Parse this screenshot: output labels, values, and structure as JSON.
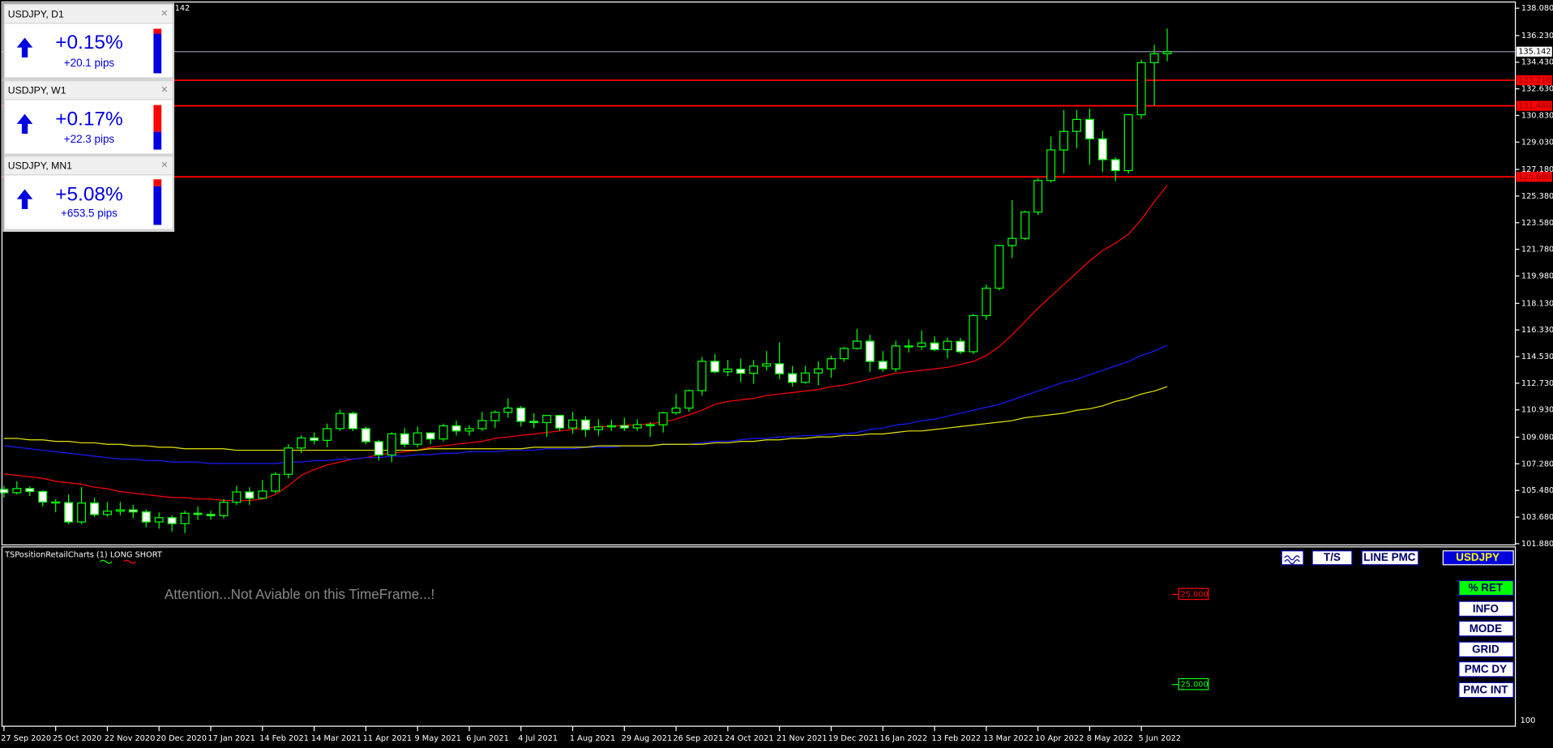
{
  "chart_data": {
    "type": "candlestick",
    "corner_text": ".142",
    "categories": [
      "27 Sep 2020",
      null,
      null,
      null,
      "25 Oct 2020",
      null,
      null,
      null,
      "22 Nov 2020",
      null,
      null,
      null,
      "20 Dec 2020",
      null,
      null,
      null,
      "17 Jan 2021",
      null,
      null,
      null,
      "14 Feb 2021",
      null,
      null,
      null,
      "14 Mar 2021",
      null,
      null,
      null,
      "11 Apr 2021",
      null,
      null,
      null,
      "9 May 2021",
      null,
      null,
      null,
      "6 Jun 2021",
      null,
      null,
      null,
      "4 Jul 2021",
      null,
      null,
      null,
      "1 Aug 2021",
      null,
      null,
      null,
      "29 Aug 2021",
      null,
      null,
      null,
      "26 Sep 2021",
      null,
      null,
      null,
      "24 Oct 2021",
      null,
      null,
      null,
      "21 Nov 2021",
      null,
      null,
      null,
      "19 Dec 2021",
      null,
      null,
      null,
      "16 Jan 2022",
      null,
      null,
      null,
      "13 Feb 2022",
      null,
      null,
      null,
      "13 Mar 2022",
      null,
      null,
      null,
      "10 Apr 2022",
      null,
      null,
      null,
      "8 May 2022",
      null,
      null,
      null,
      "5 Jun 2022",
      null,
      null
    ],
    "open": [
      105.55,
      105.33,
      105.61,
      105.41,
      104.7,
      104.66,
      103.35,
      104.63,
      103.85,
      104.08,
      104.17,
      104.03,
      103.35,
      103.64,
      103.24,
      103.94,
      103.86,
      103.77,
      104.68,
      105.38,
      104.95,
      105.44,
      106.57,
      108.35,
      109.03,
      108.87,
      109.66,
      110.69,
      109.66,
      108.78,
      107.88,
      109.31,
      108.6,
      109.37,
      108.96,
      109.85,
      109.5,
      109.66,
      110.2,
      110.76,
      111.05,
      110.15,
      110.07,
      110.55,
      109.7,
      110.24,
      109.59,
      109.78,
      109.86,
      109.71,
      109.93,
      109.92,
      110.73,
      111.05,
      112.23,
      114.21,
      113.5,
      113.68,
      113.4,
      113.89,
      114.04,
      113.37,
      112.79,
      113.42,
      113.7,
      114.39,
      115.08,
      115.57,
      114.2,
      113.7,
      115.25,
      115.2,
      115.45,
      115.0,
      115.56,
      114.86,
      117.3,
      119.15,
      122.04,
      122.52,
      124.3,
      126.43,
      128.5,
      129.75,
      130.56,
      129.25,
      127.84,
      127.1,
      130.88,
      134.4,
      135.0
    ],
    "high": [
      105.8,
      106.1,
      105.75,
      105.5,
      104.9,
      105.2,
      105.7,
      105.0,
      104.7,
      104.7,
      104.5,
      104.2,
      104.0,
      103.8,
      104.1,
      104.4,
      104.1,
      104.9,
      105.8,
      105.7,
      106.2,
      106.7,
      108.6,
      109.2,
      109.4,
      110.0,
      110.95,
      110.8,
      109.8,
      108.9,
      109.4,
      109.7,
      109.8,
      109.4,
      110.0,
      110.2,
      109.9,
      110.8,
      110.9,
      111.7,
      111.2,
      110.7,
      110.6,
      110.6,
      110.8,
      110.5,
      110.3,
      110.25,
      110.4,
      110.3,
      110.1,
      110.8,
      112.0,
      112.3,
      114.5,
      114.7,
      114.3,
      114.4,
      114.3,
      114.9,
      115.5,
      113.9,
      113.9,
      114.2,
      114.6,
      115.2,
      116.4,
      116.0,
      114.9,
      115.6,
      115.7,
      116.3,
      115.9,
      115.8,
      115.8,
      117.4,
      119.4,
      122.1,
      125.1,
      124.4,
      126.6,
      129.4,
      131.2,
      131.2,
      131.3,
      129.8,
      128.0,
      130.9,
      134.6,
      135.6,
      136.7
    ],
    "low": [
      105.0,
      105.2,
      105.1,
      104.4,
      104.0,
      103.2,
      103.2,
      103.7,
      103.7,
      103.8,
      103.6,
      103.0,
      102.9,
      102.7,
      102.6,
      103.5,
      103.5,
      103.6,
      104.5,
      104.5,
      104.9,
      105.3,
      106.3,
      108.0,
      108.6,
      108.4,
      109.5,
      109.5,
      108.6,
      107.5,
      107.4,
      108.4,
      108.4,
      108.6,
      108.8,
      109.2,
      109.2,
      109.5,
      109.7,
      110.4,
      109.8,
      109.7,
      109.1,
      109.5,
      109.3,
      109.1,
      109.2,
      109.5,
      109.5,
      109.5,
      109.1,
      109.4,
      110.6,
      110.8,
      111.9,
      113.4,
      113.2,
      112.8,
      112.7,
      113.6,
      113.0,
      112.5,
      112.7,
      112.6,
      113.1,
      114.2,
      115.0,
      113.5,
      113.5,
      113.5,
      114.8,
      115.0,
      114.9,
      114.4,
      114.7,
      114.7,
      117.0,
      119.0,
      121.2,
      122.4,
      124.1,
      126.3,
      126.9,
      128.6,
      127.5,
      127.0,
      126.4,
      126.9,
      130.6,
      131.5,
      134.5
    ],
    "close": [
      105.33,
      105.61,
      105.41,
      104.7,
      104.66,
      103.35,
      104.63,
      103.85,
      104.08,
      104.17,
      104.03,
      103.35,
      103.64,
      103.24,
      103.94,
      103.86,
      103.77,
      104.68,
      105.38,
      104.95,
      105.44,
      106.57,
      108.35,
      109.03,
      108.87,
      109.66,
      110.69,
      109.66,
      108.78,
      107.88,
      109.31,
      108.6,
      109.37,
      108.96,
      109.85,
      109.5,
      109.66,
      110.2,
      110.76,
      111.05,
      110.15,
      110.07,
      110.55,
      109.7,
      110.24,
      109.59,
      109.78,
      109.86,
      109.71,
      109.93,
      109.92,
      110.73,
      111.05,
      112.23,
      114.21,
      113.5,
      113.68,
      113.4,
      113.89,
      114.04,
      113.37,
      112.79,
      113.42,
      113.7,
      114.39,
      115.08,
      115.57,
      114.2,
      113.7,
      115.25,
      115.2,
      115.45,
      115.0,
      115.56,
      114.86,
      117.3,
      119.15,
      122.04,
      122.52,
      124.3,
      126.43,
      128.5,
      129.75,
      130.56,
      129.25,
      127.84,
      127.1,
      130.88,
      134.4,
      135.0,
      135.142
    ],
    "up_color": "#000000",
    "down_color": "#ffffff",
    "wick_color": "#00ff00",
    "lines": [
      {
        "color": "#ff0000",
        "values": [
          106.6,
          106.5,
          106.4,
          106.3,
          106.1,
          106.0,
          105.9,
          105.7,
          105.6,
          105.4,
          105.3,
          105.2,
          105.1,
          105.0,
          105.0,
          104.9,
          104.9,
          104.8,
          104.8,
          104.8,
          104.9,
          105.2,
          105.8,
          106.5,
          106.9,
          107.2,
          107.4,
          107.6,
          107.7,
          107.9,
          108.0,
          108.1,
          108.2,
          108.4,
          108.5,
          108.6,
          108.7,
          108.8,
          109.0,
          109.1,
          109.2,
          109.3,
          109.4,
          109.5,
          109.6,
          109.7,
          109.8,
          109.8,
          109.9,
          109.9,
          110.0,
          110.1,
          110.3,
          110.6,
          110.9,
          111.3,
          111.5,
          111.6,
          111.7,
          111.9,
          112.0,
          112.1,
          112.2,
          112.3,
          112.5,
          112.6,
          112.8,
          113.0,
          113.2,
          113.4,
          113.5,
          113.6,
          113.7,
          113.8,
          114.0,
          114.2,
          114.6,
          115.2,
          116.0,
          116.9,
          117.8,
          118.6,
          119.4,
          120.2,
          121.0,
          121.7,
          122.2,
          122.8,
          123.8,
          125.0,
          126.1
        ]
      },
      {
        "color": "#1a1aff",
        "values": [
          108.5,
          108.4,
          108.3,
          108.2,
          108.1,
          108.0,
          107.9,
          107.8,
          107.7,
          107.6,
          107.6,
          107.5,
          107.5,
          107.4,
          107.4,
          107.4,
          107.3,
          107.3,
          107.3,
          107.3,
          107.3,
          107.3,
          107.4,
          107.4,
          107.5,
          107.5,
          107.6,
          107.6,
          107.7,
          107.7,
          107.8,
          107.8,
          107.9,
          107.9,
          108.0,
          108.0,
          108.1,
          108.1,
          108.1,
          108.2,
          108.2,
          108.2,
          108.3,
          108.3,
          108.3,
          108.4,
          108.4,
          108.4,
          108.5,
          108.5,
          108.5,
          108.6,
          108.6,
          108.6,
          108.7,
          108.8,
          108.8,
          108.9,
          109.0,
          109.0,
          109.1,
          109.1,
          109.2,
          109.2,
          109.3,
          109.3,
          109.4,
          109.6,
          109.7,
          109.9,
          110.0,
          110.2,
          110.3,
          110.5,
          110.7,
          110.9,
          111.1,
          111.3,
          111.6,
          111.9,
          112.2,
          112.5,
          112.8,
          113.0,
          113.3,
          113.6,
          113.9,
          114.2,
          114.6,
          114.9,
          115.3
        ]
      },
      {
        "color": "#e6e600",
        "values": [
          109.0,
          109.0,
          108.9,
          108.9,
          108.8,
          108.8,
          108.7,
          108.7,
          108.6,
          108.6,
          108.5,
          108.5,
          108.4,
          108.4,
          108.3,
          108.3,
          108.3,
          108.3,
          108.2,
          108.2,
          108.2,
          108.2,
          108.2,
          108.2,
          108.2,
          108.2,
          108.2,
          108.2,
          108.2,
          108.2,
          108.2,
          108.2,
          108.2,
          108.3,
          108.3,
          108.3,
          108.3,
          108.3,
          108.3,
          108.3,
          108.3,
          108.4,
          108.4,
          108.4,
          108.4,
          108.4,
          108.5,
          108.5,
          108.5,
          108.5,
          108.5,
          108.6,
          108.6,
          108.6,
          108.6,
          108.7,
          108.7,
          108.8,
          108.8,
          108.9,
          108.9,
          109.0,
          109.0,
          109.1,
          109.1,
          109.2,
          109.2,
          109.3,
          109.3,
          109.4,
          109.5,
          109.5,
          109.6,
          109.7,
          109.8,
          109.9,
          110.0,
          110.1,
          110.2,
          110.4,
          110.5,
          110.6,
          110.7,
          110.9,
          111.0,
          111.2,
          111.5,
          111.7,
          112.0,
          112.2,
          112.5
        ]
      }
    ],
    "price_lines": [
      {
        "value": 135.142,
        "label": "135.142",
        "color": "#8c8ca8",
        "label_bg": "#ffffff",
        "label_color": "#000000"
      },
      {
        "value": 133.21,
        "label": "133.210",
        "color": "#ff0000",
        "label_bg": "#ff0000",
        "label_color": "#800000"
      },
      {
        "value": 131.48,
        "label": "131.480",
        "color": "#ff0000",
        "label_bg": "#ff0000",
        "label_color": "#800000"
      },
      {
        "value": 126.68,
        "label": "126.680",
        "color": "#ff0000",
        "label_bg": "#ff0000",
        "label_color": "#800000"
      }
    ],
    "ylim": [
      101.8,
      138.5
    ],
    "yticks": [
      {
        "value": 138.08,
        "label": "138.080"
      },
      {
        "value": 136.23,
        "label": "136.230"
      },
      {
        "value": 134.43,
        "label": "134.430"
      },
      {
        "value": 132.63,
        "label": "132.630"
      },
      {
        "value": 130.83,
        "label": "130.830"
      },
      {
        "value": 129.03,
        "label": "129.030"
      },
      {
        "value": 127.18,
        "label": "127.180"
      },
      {
        "value": 125.38,
        "label": "125.380"
      },
      {
        "value": 123.58,
        "label": "123.580"
      },
      {
        "value": 121.78,
        "label": "121.780"
      },
      {
        "value": 119.98,
        "label": "119.980"
      },
      {
        "value": 118.13,
        "label": "118.130"
      },
      {
        "value": 116.33,
        "label": "116.330"
      },
      {
        "value": 114.53,
        "label": "114.530"
      },
      {
        "value": 112.73,
        "label": "112.730"
      },
      {
        "value": 110.93,
        "label": "110.930"
      },
      {
        "value": 109.08,
        "label": "109.080"
      },
      {
        "value": 107.28,
        "label": "107.280"
      },
      {
        "value": 105.48,
        "label": "105.480"
      },
      {
        "value": 103.68,
        "label": "103.680"
      },
      {
        "value": 101.88,
        "label": "101.880"
      }
    ],
    "grid": false
  },
  "panels": [
    {
      "title": "USDJPY, D1",
      "change": "+0.15%",
      "pips": "+20.1 pips"
    },
    {
      "title": "USDJPY, W1",
      "change": "+0.17%",
      "pips": "+22.3 pips"
    },
    {
      "title": "USDJPY, MN1",
      "change": "+5.08%",
      "pips": "+653.5 pips"
    }
  ],
  "indicator": {
    "name": "TSPositionRetailCharts (1) LONG SHORT",
    "message": "Attention...Not Aviable on this TimeFrame...!",
    "level_labels": [
      "25.000",
      "25.000"
    ],
    "axis_label": "100"
  },
  "toolbar": [
    "T/S",
    "LINE PMC",
    "USDJPY"
  ],
  "side_buttons": [
    "% RET",
    "INFO",
    "MODE",
    "GRID",
    "PMC DY",
    "PMC INT"
  ]
}
